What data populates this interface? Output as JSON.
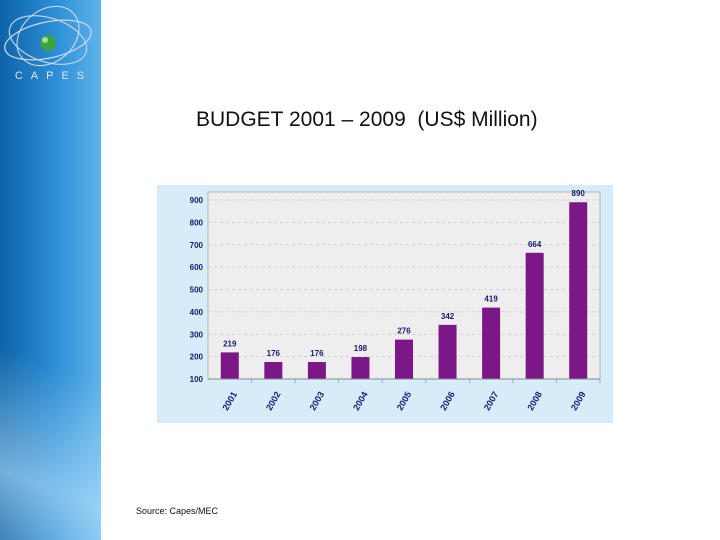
{
  "slide": {
    "logo_text": "CAPES",
    "title": "BUDGET 2001 – 2009  (US$ Million)",
    "source": "Source: Capes/MEC"
  },
  "colors": {
    "bar": "#7b1787",
    "sidebar": "#1f7cc6",
    "chart_background": "#d6ecf9"
  },
  "chart_data": {
    "type": "bar",
    "categories": [
      "2001",
      "2002",
      "2003",
      "2004",
      "2005",
      "2006",
      "2007",
      "2008",
      "2009"
    ],
    "values": [
      219,
      176,
      176,
      198,
      276,
      342,
      419,
      664,
      890
    ],
    "data_labels": [
      "219",
      "176",
      "176",
      "198",
      "276",
      "342",
      "419",
      "664",
      "890"
    ],
    "yticks": [
      "100",
      "200",
      "300",
      "400",
      "500",
      "600",
      "700",
      "800",
      "900"
    ],
    "ylim": [
      100,
      900
    ],
    "grid": true,
    "title": "",
    "xlabel": "",
    "ylabel": ""
  }
}
